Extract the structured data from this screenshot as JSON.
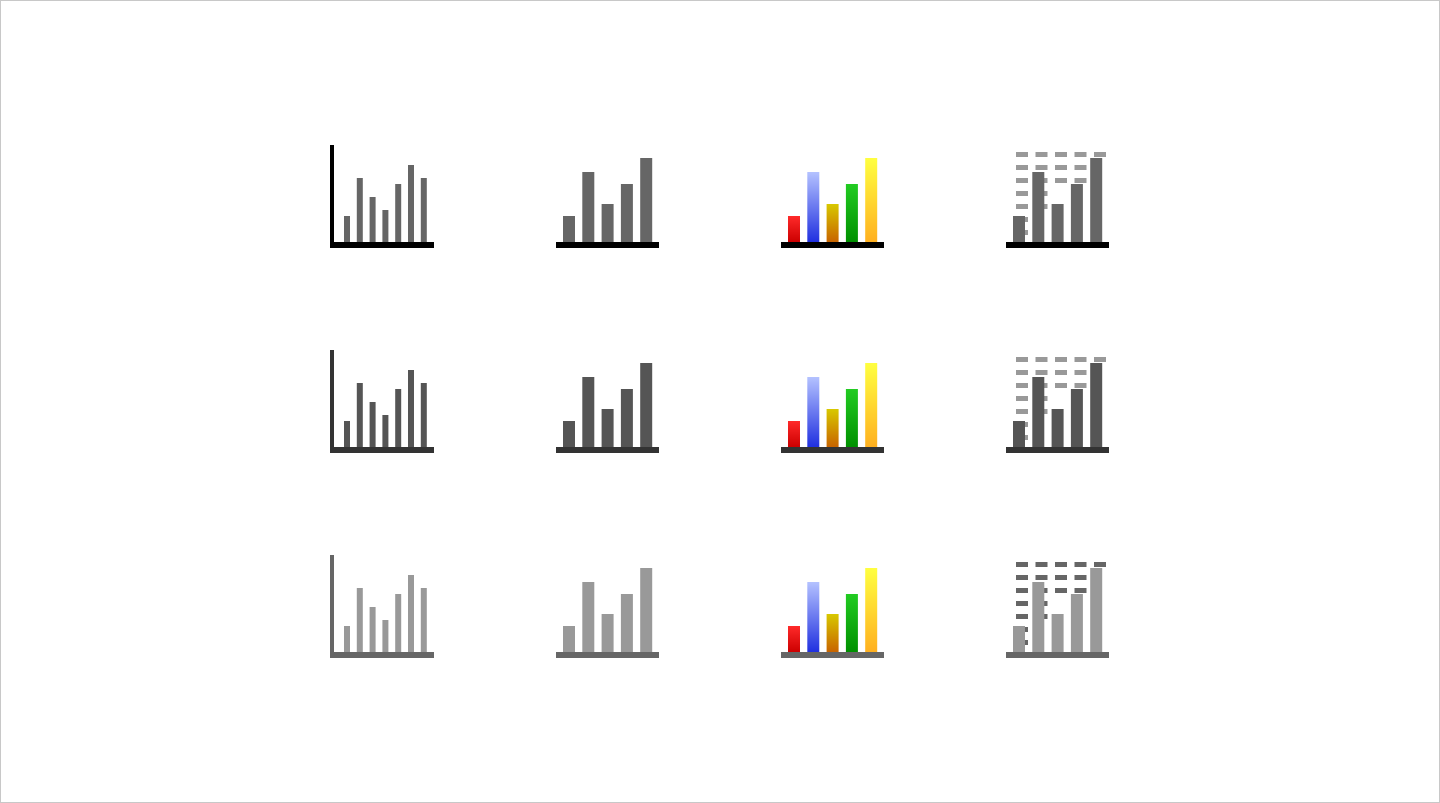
{
  "icon_set": {
    "rows": [
      {
        "name": "dark",
        "axis_color": "#000000",
        "bar_color": "#666666",
        "grid_color": "#999999"
      },
      {
        "name": "medium",
        "axis_color": "#333333",
        "bar_color": "#555555",
        "grid_color": "#999999"
      },
      {
        "name": "light",
        "axis_color": "#666666",
        "bar_color": "#999999",
        "grid_color": "#666666"
      }
    ],
    "icons": [
      {
        "name": "thin-bar-chart-icon",
        "variant": "thin-bars",
        "bar_levels": [
          0.27,
          0.67,
          0.47,
          0.33,
          0.6,
          0.8,
          0.67
        ]
      },
      {
        "name": "bar-chart-icon",
        "variant": "bars",
        "bar_levels": [
          0.27,
          0.73,
          0.4,
          0.6,
          0.87
        ]
      },
      {
        "name": "color-bar-chart-icon",
        "variant": "color-bars",
        "bar_levels": [
          0.27,
          0.73,
          0.4,
          0.6,
          0.87
        ]
      },
      {
        "name": "bar-chart-with-grid-icon",
        "variant": "grid-bars",
        "bar_levels": [
          0.27,
          0.73,
          0.4,
          0.6,
          0.87
        ]
      }
    ],
    "colored_bar_gradients": [
      {
        "top": "#ff2a2a",
        "bottom": "#cc0000"
      },
      {
        "top": "#b4c2ff",
        "bottom": "#2030e0"
      },
      {
        "top": "#d8c800",
        "bottom": "#c86400"
      },
      {
        "top": "#22cc22",
        "bottom": "#009000"
      },
      {
        "top": "#ffff40",
        "bottom": "#ffb020"
      }
    ]
  }
}
